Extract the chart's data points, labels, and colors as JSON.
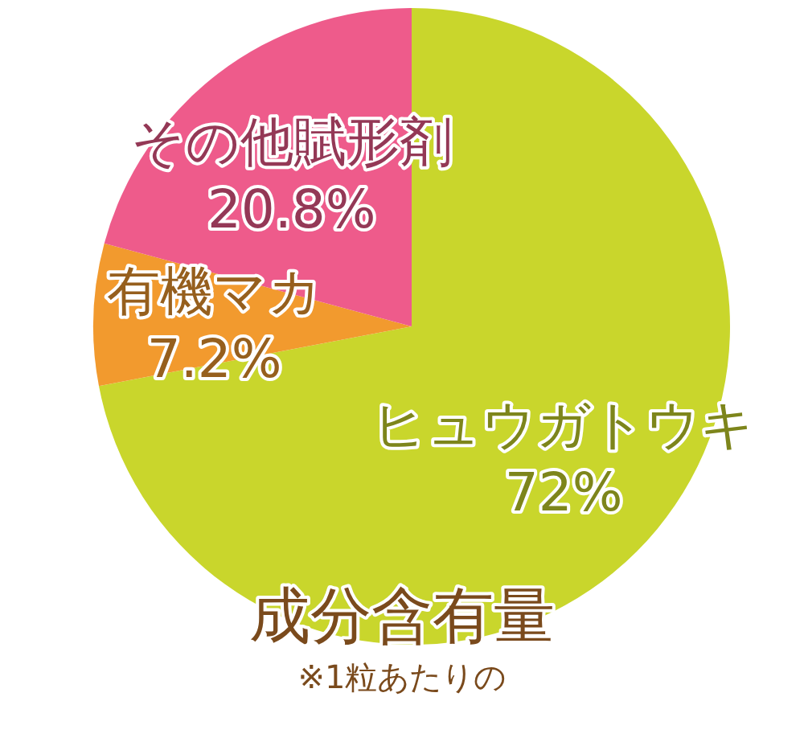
{
  "chart_data": {
    "type": "pie",
    "title": "成分含有量",
    "subtitle": "※1粒あたりの",
    "categories": [
      "ヒュウガトウキ",
      "有機マカ",
      "その他賦形剤"
    ],
    "values": [
      72,
      7.2,
      20.8
    ],
    "colors": [
      "#c9d62c",
      "#f29a2e",
      "#ee5b8b"
    ],
    "value_labels": [
      "72%",
      "7.2%",
      "20.8%"
    ]
  }
}
